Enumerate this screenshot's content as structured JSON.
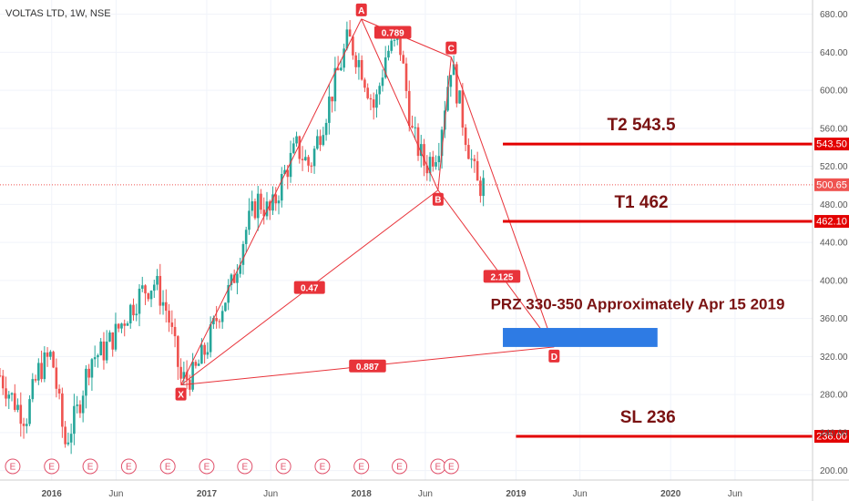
{
  "chart_data": {
    "type": "candlestick",
    "symbol_label": "VOLTAS LTD, 1W, NSE",
    "x_ticks": [
      "2016",
      "Jun",
      "2017",
      "Jun",
      "2018",
      "Jun",
      "2019",
      "Jun",
      "2020",
      "Jun"
    ],
    "y_ticks": [
      200,
      240,
      280,
      320,
      360,
      400,
      440,
      480,
      520,
      560,
      600,
      640,
      680
    ],
    "ylim": [
      190,
      695
    ],
    "last_price": "500.65",
    "price_series": [
      {
        "date": "2015-09",
        "value": 300
      },
      {
        "date": "2015-10",
        "value": 275
      },
      {
        "date": "2015-11",
        "value": 255
      },
      {
        "date": "2015-12",
        "value": 305
      },
      {
        "date": "2016-01",
        "value": 322
      },
      {
        "date": "2016-02",
        "value": 228
      },
      {
        "date": "2016-03",
        "value": 262
      },
      {
        "date": "2016-04",
        "value": 318
      },
      {
        "date": "2016-05",
        "value": 325
      },
      {
        "date": "2016-06",
        "value": 345
      },
      {
        "date": "2016-07",
        "value": 368
      },
      {
        "date": "2016-08",
        "value": 388
      },
      {
        "date": "2016-09",
        "value": 398
      },
      {
        "date": "2016-10",
        "value": 365
      },
      {
        "date": "2016-11",
        "value": 295
      },
      {
        "date": "2016-12",
        "value": 300
      },
      {
        "date": "2017-01",
        "value": 330
      },
      {
        "date": "2017-02",
        "value": 370
      },
      {
        "date": "2017-03",
        "value": 395
      },
      {
        "date": "2017-04",
        "value": 450
      },
      {
        "date": "2017-05",
        "value": 485
      },
      {
        "date": "2017-06",
        "value": 470
      },
      {
        "date": "2017-07",
        "value": 510
      },
      {
        "date": "2017-08",
        "value": 540
      },
      {
        "date": "2017-09",
        "value": 520
      },
      {
        "date": "2017-10",
        "value": 565
      },
      {
        "date": "2017-11",
        "value": 610
      },
      {
        "date": "2017-12",
        "value": 655
      },
      {
        "date": "2018-01",
        "value": 625
      },
      {
        "date": "2018-02",
        "value": 580
      },
      {
        "date": "2018-03",
        "value": 640
      },
      {
        "date": "2018-04",
        "value": 650
      },
      {
        "date": "2018-05",
        "value": 555
      },
      {
        "date": "2018-06",
        "value": 520
      },
      {
        "date": "2018-07",
        "value": 540
      },
      {
        "date": "2018-08",
        "value": 630
      },
      {
        "date": "2018-09",
        "value": 560
      },
      {
        "date": "2018-10",
        "value": 500
      }
    ],
    "earnings_markers": [
      "2015-10",
      "2016-01",
      "2016-04",
      "2016-07",
      "2016-10",
      "2017-01",
      "2017-04",
      "2017-07",
      "2017-10",
      "2018-01",
      "2018-04",
      "2018-07",
      "2018-08"
    ],
    "earnings_label": "E",
    "harmonic_points": [
      {
        "label": "X",
        "date": "2016-11",
        "value": 290
      },
      {
        "label": "A",
        "date": "2018-01",
        "value": 675
      },
      {
        "label": "B",
        "date": "2018-07",
        "value": 495
      },
      {
        "label": "C",
        "date": "2018-08",
        "value": 635
      },
      {
        "label": "D",
        "date": "2019-04",
        "value": 330
      }
    ],
    "ratios": [
      {
        "label": "0.789",
        "from": "A",
        "to": "C",
        "pos": 0.35
      },
      {
        "label": "0.47",
        "from": "X",
        "to": "B",
        "pos": 0.5
      },
      {
        "label": "2.125",
        "from": "B",
        "to": "D",
        "pos": 0.55
      },
      {
        "label": "0.887",
        "from": "X",
        "to": "D",
        "pos": 0.5
      }
    ],
    "levels": [
      {
        "name": "T2",
        "title": "T2 543.5",
        "value": 543.5,
        "tag": "543.50",
        "start": "2018-12"
      },
      {
        "name": "T1",
        "title": "T1 462",
        "value": 462.1,
        "tag": "462.10",
        "start": "2018-12"
      },
      {
        "name": "SL",
        "title": "SL 236",
        "value": 236,
        "tag": "236.00",
        "start": "2019-01"
      }
    ],
    "prz": {
      "label": "PRZ 330-350 Approximately Apr 15 2019",
      "low": 330,
      "high": 350,
      "start": "2018-12",
      "end": "2019-12"
    },
    "colors": {
      "up": "#26a69a",
      "down": "#ef5350",
      "pattern": "#e8333a",
      "level": "#e30000",
      "prz": "#2e7be4",
      "label_text": "#7a1212",
      "earnings": "#e0506a"
    }
  }
}
